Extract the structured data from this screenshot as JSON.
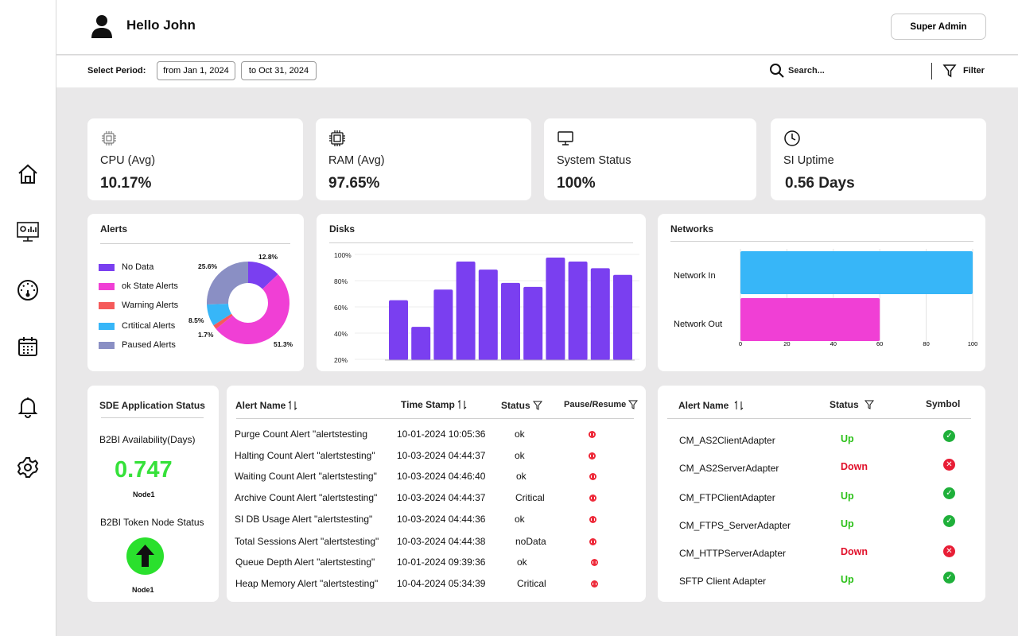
{
  "header": {
    "greeting": "Hello John",
    "role_button": "Super Admin"
  },
  "toolbar": {
    "period_label": "Select Period:",
    "from_date": "from Jan 1, 2024",
    "to_date": "to Oct 31, 2024",
    "search_placeholder": "Search...",
    "filter_label": "Filter"
  },
  "sidebar": {
    "items": [
      "home-icon",
      "monitor-dashboard-icon",
      "speedometer-icon",
      "calendar-icon",
      "bell-icon",
      "gear-icon"
    ]
  },
  "metrics": [
    {
      "label": "CPU (Avg)",
      "value": "10.17%",
      "icon": "cpu-icon"
    },
    {
      "label": "RAM (Avg)",
      "value": "97.65%",
      "icon": "chip-icon"
    },
    {
      "label": "System Status",
      "value": "100%",
      "icon": "monitor-icon"
    },
    {
      "label": "SI Uptime",
      "value": "0.56 Days",
      "icon": "clock-icon"
    }
  ],
  "alerts_card": {
    "title": "Alerts",
    "legend": [
      "No Data",
      "ok State Alerts",
      "Warning Alerts",
      "Crtitical Alerts",
      "Paused Alerts"
    ],
    "pie_labels": [
      "12.8%",
      "51.3%",
      "1.7%",
      "8.5%",
      "25.6%"
    ]
  },
  "disks_card": {
    "title": "Disks"
  },
  "networks_card": {
    "title": "Networks"
  },
  "chart_data": [
    {
      "type": "pie",
      "title": "Alerts",
      "categories": [
        "No Data",
        "ok State Alerts",
        "Warning Alerts",
        "Crtitical Alerts",
        "Paused Alerts"
      ],
      "values": [
        12.8,
        51.3,
        1.7,
        8.5,
        25.6
      ],
      "colors": [
        "#7a3ff0",
        "#f03fd5",
        "#f55a5a",
        "#37b6f8",
        "#8a8fc4"
      ],
      "donut": true
    },
    {
      "type": "bar",
      "title": "Disks",
      "values": [
        65,
        45,
        73,
        94,
        88,
        78,
        75,
        97,
        94,
        89,
        84
      ],
      "ylim": [
        20,
        100
      ],
      "yticks": [
        "20%",
        "40%",
        "60%",
        "80%",
        "100%"
      ],
      "color": "#7a3ff0"
    },
    {
      "type": "bar",
      "orientation": "horizontal",
      "title": "Networks",
      "categories": [
        "Network In",
        "Network Out"
      ],
      "values": [
        100,
        60
      ],
      "xlim": [
        0,
        100
      ],
      "xticks": [
        "0",
        "20",
        "40",
        "60",
        "80",
        "100"
      ],
      "colors": [
        "#37b6f8",
        "#f03fd5"
      ]
    }
  ],
  "sde": {
    "title": "SDE Application Status",
    "availability_label": "B2BI Availability(Days)",
    "availability_value": "0.747",
    "node1_label": "Node1",
    "token_label": "B2BI Token Node Status",
    "node2_label": "Node1",
    "status_color": "#36e13a"
  },
  "alert_table": {
    "headers": {
      "name": "Alert Name",
      "timestamp": "Time Stamp",
      "status": "Status",
      "pause": "Pause/Resume"
    },
    "rows": [
      {
        "name": "Purge Count Alert \"alertstesting",
        "time": "10-01-2024 10:05:36",
        "status": "ok"
      },
      {
        "name": "Halting Count Alert \"alertstesting\"",
        "time": "10-03-2024 04:44:37",
        "status": "ok"
      },
      {
        "name": "Waiting Count Alert \"alertstesting\"",
        "time": "10-03-2024 04:46:40",
        "status": "ok"
      },
      {
        "name": "Archive Count Alert \"alertstesting\"",
        "time": "10-03-2024 04:44:37",
        "status": "Critical"
      },
      {
        "name": "SI DB Usage Alert \"alertstesting\"",
        "time": "10-03-2024 04:44:36",
        "status": "ok"
      },
      {
        "name": "Total Sessions Alert \"alertstesting\"",
        "time": "10-03-2024 04:44:38",
        "status": "noData"
      },
      {
        "name": "Queue Depth Alert \"alertstesting\"",
        "time": "10-01-2024 09:39:36",
        "status": "ok"
      },
      {
        "name": "Heap Memory Alert \"alertstesting\"",
        "time": "10-04-2024 05:34:39",
        "status": "Critical"
      }
    ]
  },
  "adapter_table": {
    "headers": {
      "name": "Alert Name",
      "status": "Status",
      "symbol": "Symbol"
    },
    "rows": [
      {
        "name": "CM_AS2ClientAdapter",
        "status": "Up"
      },
      {
        "name": "CM_AS2ServerAdapter",
        "status": "Down"
      },
      {
        "name": "CM_FTPClientAdapter",
        "status": "Up"
      },
      {
        "name": "CM_FTPS_ServerAdapter",
        "status": "Up"
      },
      {
        "name": "CM_HTTPServerAdapter",
        "status": "Down"
      },
      {
        "name": "SFTP Client Adapter",
        "status": "Up"
      }
    ]
  }
}
